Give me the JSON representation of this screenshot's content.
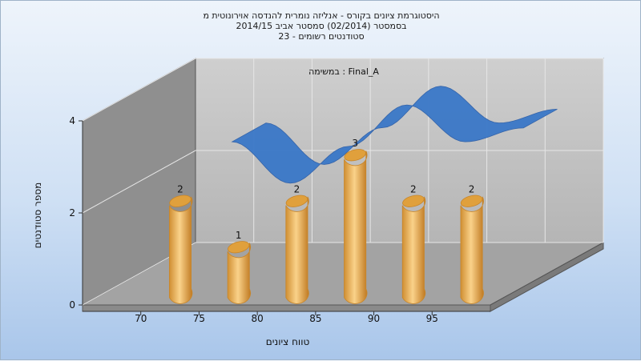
{
  "chart_data": {
    "type": "bar",
    "title_lines": [
      "היסטוגרמת ציונים בקורס - אנליזה נומרית להנדסה אוירונוטית מ",
      "בסמסטר  (02/2014)  סמסטר אביב 2014/15",
      "סטודנטים רשומים - 23"
    ],
    "annotation": "במשימה : Final_A",
    "xlabel": "טווח ציונים",
    "ylabel": "מספר סטודנטים",
    "x_ticks": [
      "70",
      "75",
      "80",
      "85",
      "90",
      "95"
    ],
    "x_tick_values": [
      70,
      75,
      80,
      85,
      90,
      95
    ],
    "y_ticks": [
      "0",
      "2",
      "4"
    ],
    "y_tick_values": [
      0,
      2,
      4
    ],
    "ylim": [
      0,
      4
    ],
    "xlim": [
      65,
      100
    ],
    "grid": true,
    "series": [
      {
        "type": "bar",
        "x": [
          72.5,
          77.5,
          82.5,
          87.5,
          92.5,
          97.5
        ],
        "values": [
          2,
          1,
          2,
          3,
          2,
          2
        ],
        "labels": [
          "2",
          "1",
          "2",
          "3",
          "2",
          "2"
        ]
      },
      {
        "type": "line",
        "x": [
          72.5,
          77.5,
          82.5,
          87.5,
          92.5,
          97.5
        ],
        "values": [
          2.8,
          1.9,
          2.7,
          3.6,
          2.8,
          3.1
        ]
      }
    ],
    "colors": {
      "bar": "#f0b456",
      "bar_dark": "#c8862a",
      "bar_top": "#e0a03c",
      "ribbon": "#3a78c8",
      "ribbon_dark": "#2e5fa8",
      "back_wall": "#c2c2c2",
      "side_wall": "#8c8c8c",
      "floor": "#a0a0a0"
    }
  }
}
